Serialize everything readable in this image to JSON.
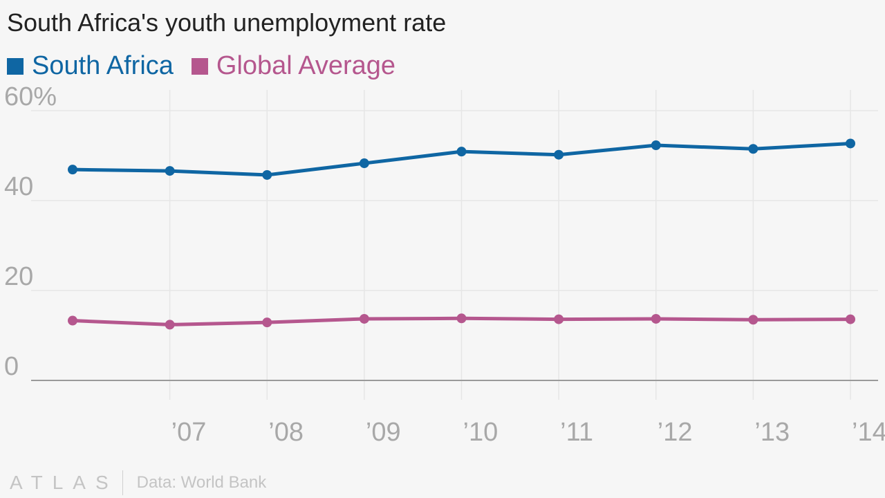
{
  "title": "South Africa's youth unemployment rate",
  "footer": {
    "logo": "ATLAS",
    "source": "Data: World Bank"
  },
  "colors": {
    "south_africa": "#0f66a3",
    "global": "#b5578e",
    "grid": "#e6e6e6",
    "axis": "#9a9a9a"
  },
  "chart_data": {
    "type": "line",
    "title": "South Africa's youth unemployment rate",
    "x": [
      2006,
      2007,
      2008,
      2009,
      2010,
      2011,
      2012,
      2013,
      2014
    ],
    "x_tick_values": [
      2007,
      2008,
      2009,
      2010,
      2011,
      2012,
      2013,
      2014
    ],
    "x_tick_labels": [
      "’07",
      "’08",
      "’09",
      "’10",
      "’11",
      "’12",
      "’13",
      "’14"
    ],
    "y_ticks": [
      0,
      20,
      40,
      60
    ],
    "y_tick_labels": [
      "0",
      "20",
      "40",
      "60%"
    ],
    "ylim": [
      0,
      60
    ],
    "grid": true,
    "legend_position": "top-left",
    "series": [
      {
        "name": "South Africa",
        "color": "#0f66a3",
        "values": [
          46.9,
          46.6,
          45.7,
          48.3,
          50.9,
          50.2,
          52.3,
          51.5,
          52.7
        ]
      },
      {
        "name": "Global Average",
        "color": "#b5578e",
        "values": [
          13.3,
          12.4,
          12.9,
          13.7,
          13.8,
          13.6,
          13.7,
          13.5,
          13.6
        ]
      }
    ]
  }
}
